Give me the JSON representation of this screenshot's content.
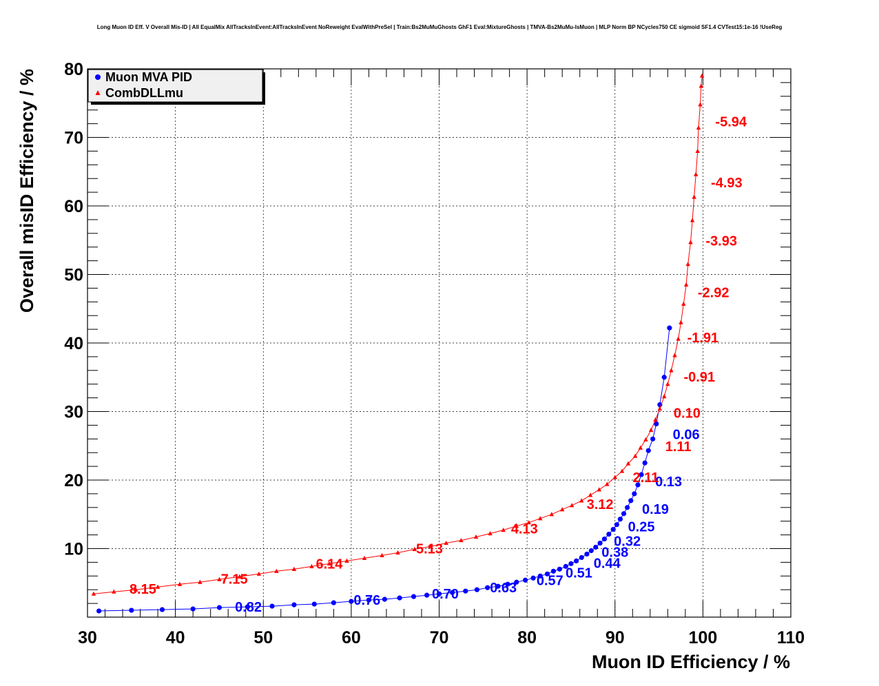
{
  "chart_data": {
    "type": "line",
    "title": "Long Muon ID Eff. V Overall Mis-ID | All EqualMix AllTracksInEvent:AllTracksInEvent NoReweight EvalWithPreSel | Train:Bs2MuMuGhosts GhF1 Eval:MixtureGhosts | TMVA-Bs2MuMu-IsMuon | MLP Norm BP NCycles750 CE sigmoid SF1.4 CVTest15:1e-16 !UseReg",
    "xlabel": "Muon ID Efficiency / %",
    "ylabel": "Overall misID Efficiency / %",
    "xlim": [
      30,
      110
    ],
    "ylim": [
      0,
      80
    ],
    "x_ticks": [
      "30",
      "40",
      "50",
      "60",
      "70",
      "80",
      "90",
      "100",
      "110"
    ],
    "y_ticks": [
      "10",
      "20",
      "30",
      "40",
      "50",
      "60",
      "70",
      "80"
    ],
    "grid": true,
    "legend_position": "top-left",
    "series": [
      {
        "name": "Muon MVA PID",
        "color": "#0000ff",
        "marker": "circle",
        "points": [
          [
            31.3,
            0.9
          ],
          [
            35.0,
            1.0
          ],
          [
            38.5,
            1.1
          ],
          [
            42.0,
            1.2
          ],
          [
            45.0,
            1.4
          ],
          [
            48.2,
            1.5
          ],
          [
            51.0,
            1.6
          ],
          [
            53.5,
            1.8
          ],
          [
            55.8,
            1.9
          ],
          [
            58.0,
            2.1
          ],
          [
            60.0,
            2.3
          ],
          [
            62.0,
            2.5
          ],
          [
            63.8,
            2.6
          ],
          [
            65.5,
            2.8
          ],
          [
            67.1,
            3.0
          ],
          [
            68.6,
            3.2
          ],
          [
            70.0,
            3.4
          ],
          [
            71.5,
            3.6
          ],
          [
            73.0,
            3.8
          ],
          [
            74.3,
            4.0
          ],
          [
            75.5,
            4.3
          ],
          [
            76.7,
            4.5
          ],
          [
            77.8,
            4.8
          ],
          [
            78.8,
            5.1
          ],
          [
            79.8,
            5.4
          ],
          [
            80.7,
            5.7
          ],
          [
            81.5,
            6.0
          ],
          [
            82.3,
            6.3
          ],
          [
            83.0,
            6.7
          ],
          [
            83.7,
            7.0
          ],
          [
            84.4,
            7.4
          ],
          [
            85.0,
            7.8
          ],
          [
            85.6,
            8.2
          ],
          [
            86.2,
            8.7
          ],
          [
            86.8,
            9.2
          ],
          [
            87.3,
            9.7
          ],
          [
            87.8,
            10.2
          ],
          [
            88.3,
            10.8
          ],
          [
            88.8,
            11.4
          ],
          [
            89.3,
            12.1
          ],
          [
            89.8,
            12.8
          ],
          [
            90.2,
            13.5
          ],
          [
            90.6,
            14.3
          ],
          [
            91.0,
            15.1
          ],
          [
            91.4,
            16.0
          ],
          [
            91.8,
            17.0
          ],
          [
            92.2,
            18.0
          ],
          [
            92.6,
            19.3
          ],
          [
            93.0,
            20.8
          ],
          [
            93.4,
            22.5
          ],
          [
            93.8,
            24.3
          ],
          [
            94.3,
            26.0
          ],
          [
            94.7,
            28.2
          ],
          [
            95.1,
            31.0
          ],
          [
            95.6,
            35.0
          ],
          [
            96.2,
            42.2
          ]
        ],
        "labels": [
          {
            "text": "0.82",
            "x": 48.3,
            "y": 1.5
          },
          {
            "text": "0.76",
            "x": 61.8,
            "y": 2.5
          },
          {
            "text": "0.70",
            "x": 70.7,
            "y": 3.4
          },
          {
            "text": "0.63",
            "x": 77.3,
            "y": 4.3
          },
          {
            "text": "0.57",
            "x": 82.6,
            "y": 5.4
          },
          {
            "text": "0.51",
            "x": 85.9,
            "y": 6.5
          },
          {
            "text": "0.44",
            "x": 89.1,
            "y": 7.9
          },
          {
            "text": "0.38",
            "x": 90.0,
            "y": 9.5
          },
          {
            "text": "0.32",
            "x": 91.4,
            "y": 11.1
          },
          {
            "text": "0.25",
            "x": 93.0,
            "y": 13.2
          },
          {
            "text": "0.19",
            "x": 94.6,
            "y": 15.8
          },
          {
            "text": "0.13",
            "x": 96.1,
            "y": 19.8
          },
          {
            "text": "0.06",
            "x": 98.1,
            "y": 26.7
          }
        ]
      },
      {
        "name": "CombDLLmu",
        "color": "#ff0000",
        "marker": "triangle",
        "points": [
          [
            30.7,
            3.4
          ],
          [
            33.0,
            3.7
          ],
          [
            35.5,
            4.0
          ],
          [
            38.0,
            4.4
          ],
          [
            40.5,
            4.8
          ],
          [
            42.8,
            5.1
          ],
          [
            45.0,
            5.5
          ],
          [
            47.3,
            5.9
          ],
          [
            49.5,
            6.3
          ],
          [
            51.5,
            6.7
          ],
          [
            53.5,
            7.0
          ],
          [
            55.5,
            7.4
          ],
          [
            57.5,
            7.8
          ],
          [
            59.5,
            8.2
          ],
          [
            61.5,
            8.6
          ],
          [
            63.5,
            9.0
          ],
          [
            65.3,
            9.4
          ],
          [
            67.2,
            9.9
          ],
          [
            69.0,
            10.3
          ],
          [
            70.8,
            10.8
          ],
          [
            72.5,
            11.2
          ],
          [
            74.2,
            11.7
          ],
          [
            75.8,
            12.2
          ],
          [
            77.3,
            12.7
          ],
          [
            78.8,
            13.3
          ],
          [
            80.2,
            13.8
          ],
          [
            81.5,
            14.4
          ],
          [
            82.8,
            15.0
          ],
          [
            84.0,
            15.7
          ],
          [
            85.1,
            16.3
          ],
          [
            86.2,
            17.0
          ],
          [
            87.2,
            17.8
          ],
          [
            88.2,
            18.6
          ],
          [
            89.1,
            19.4
          ],
          [
            90.0,
            20.4
          ],
          [
            90.8,
            21.3
          ],
          [
            91.5,
            22.4
          ],
          [
            92.3,
            23.5
          ],
          [
            92.9,
            24.7
          ],
          [
            93.5,
            25.9
          ],
          [
            94.1,
            27.3
          ],
          [
            94.6,
            28.8
          ],
          [
            95.1,
            30.4
          ],
          [
            95.6,
            32.2
          ],
          [
            96.0,
            34.0
          ],
          [
            96.4,
            36.0
          ],
          [
            96.8,
            38.2
          ],
          [
            97.2,
            40.6
          ],
          [
            97.5,
            43.0
          ],
          [
            97.8,
            45.7
          ],
          [
            98.1,
            48.5
          ],
          [
            98.3,
            51.5
          ],
          [
            98.6,
            54.7
          ],
          [
            98.8,
            57.9
          ],
          [
            99.0,
            61.3
          ],
          [
            99.2,
            64.6
          ],
          [
            99.4,
            68.0
          ],
          [
            99.5,
            71.4
          ],
          [
            99.7,
            74.8
          ],
          [
            99.8,
            77.5
          ],
          [
            99.9,
            79.0
          ]
        ],
        "labels": [
          {
            "text": "8.15",
            "x": 36.3,
            "y": 4.1
          },
          {
            "text": "7.15",
            "x": 46.7,
            "y": 5.6
          },
          {
            "text": "6.14",
            "x": 57.5,
            "y": 7.8
          },
          {
            "text": "5.13",
            "x": 68.9,
            "y": 10.0
          },
          {
            "text": "4.13",
            "x": 79.7,
            "y": 12.9
          },
          {
            "text": "3.12",
            "x": 88.3,
            "y": 16.5
          },
          {
            "text": "2.11",
            "x": 93.5,
            "y": 20.4
          },
          {
            "text": "1.11",
            "x": 97.2,
            "y": 24.9
          },
          {
            "text": "0.10",
            "x": 98.2,
            "y": 29.8
          },
          {
            "text": "-0.91",
            "x": 99.6,
            "y": 35.1
          },
          {
            "text": "-1.91",
            "x": 100.0,
            "y": 40.8
          },
          {
            "text": "-2.92",
            "x": 101.2,
            "y": 47.4
          },
          {
            "text": "-3.93",
            "x": 102.1,
            "y": 54.9
          },
          {
            "text": "-4.93",
            "x": 102.7,
            "y": 63.4
          },
          {
            "text": "-5.94",
            "x": 103.2,
            "y": 72.3
          }
        ]
      }
    ]
  }
}
